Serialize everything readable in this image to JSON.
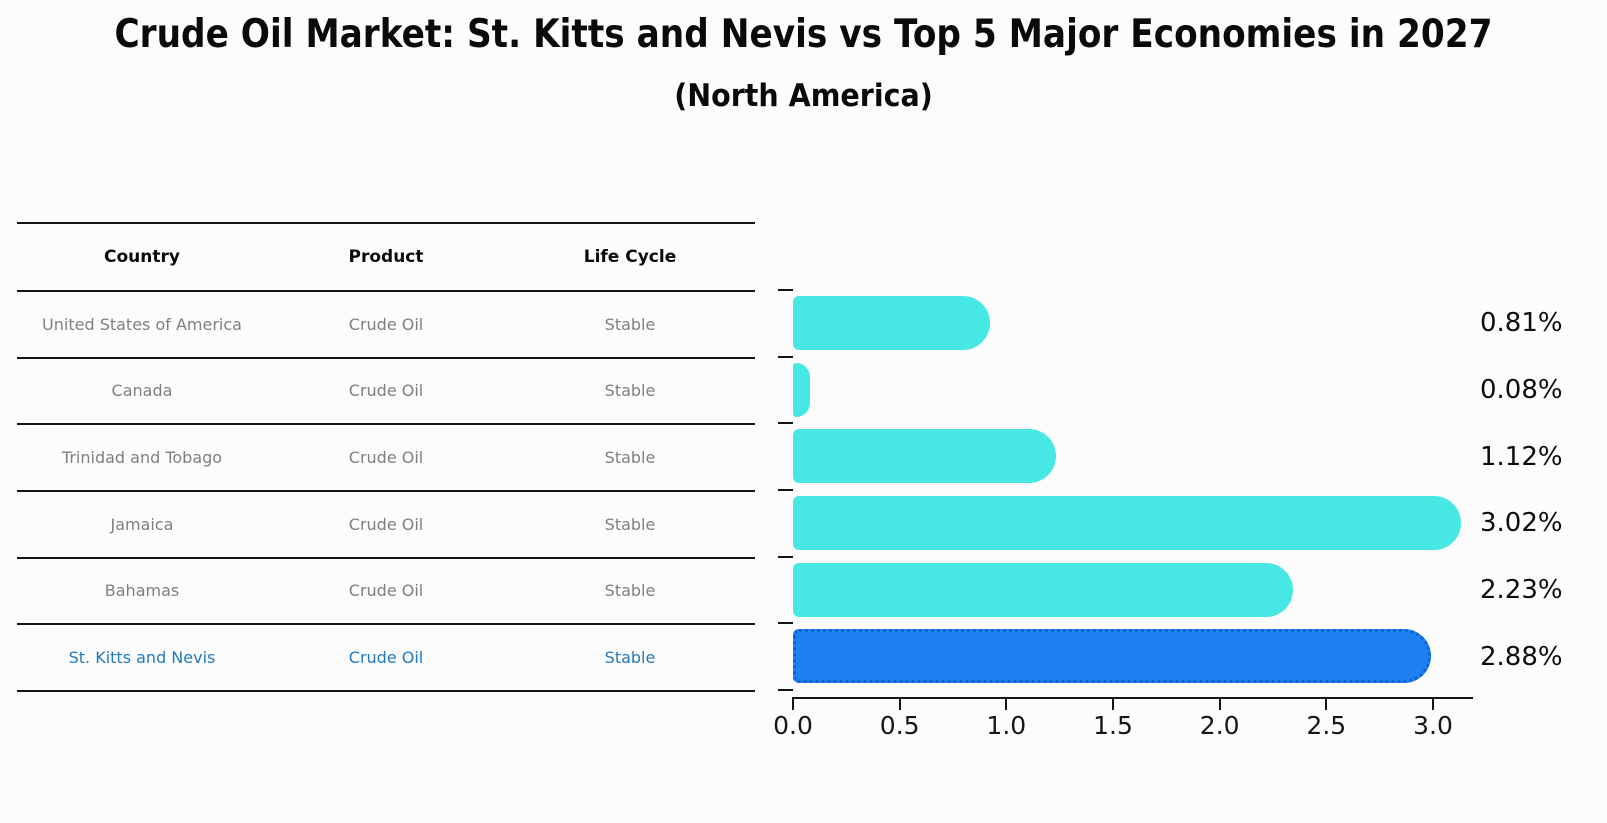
{
  "title": "Crude Oil Market: St. Kitts and Nevis vs Top 5 Major Economies in 2027",
  "subtitle": "(North America)",
  "table": {
    "headers": [
      "Country",
      "Product",
      "Life Cycle"
    ],
    "rows": [
      {
        "country": "United States of America",
        "product": "Crude Oil",
        "life_cycle": "Stable",
        "highlighted": false
      },
      {
        "country": "Canada",
        "product": "Crude Oil",
        "life_cycle": "Stable",
        "highlighted": false
      },
      {
        "country": "Trinidad and Tobago",
        "product": "Crude Oil",
        "life_cycle": "Stable",
        "highlighted": false
      },
      {
        "country": "Jamaica",
        "product": "Crude Oil",
        "life_cycle": "Stable",
        "highlighted": false
      },
      {
        "country": "Bahamas",
        "product": "Crude Oil",
        "life_cycle": "Stable",
        "highlighted": false
      },
      {
        "country": "St. Kitts and Nevis",
        "product": "Crude Oil",
        "life_cycle": "Stable",
        "highlighted": true
      }
    ]
  },
  "chart_data": {
    "type": "bar",
    "orientation": "horizontal",
    "title": "Crude Oil Market: St. Kitts and Nevis vs Top 5 Major Economies in 2027 (North America)",
    "categories": [
      "United States of America",
      "Canada",
      "Trinidad and Tobago",
      "Jamaica",
      "Bahamas",
      "St. Kitts and Nevis"
    ],
    "values": [
      0.81,
      0.08,
      1.12,
      3.02,
      2.23,
      2.88
    ],
    "value_labels": [
      "0.81%",
      "0.08%",
      "1.12%",
      "3.02%",
      "2.23%",
      "2.88%"
    ],
    "xlim": [
      0,
      3.2
    ],
    "xticks": [
      0.0,
      0.5,
      1.0,
      1.5,
      2.0,
      2.5,
      3.0
    ],
    "xtick_labels": [
      "0.0",
      "0.5",
      "1.0",
      "1.5",
      "2.0",
      "2.5",
      "3.0"
    ],
    "grid": false,
    "legend": null,
    "highlight_index": 5
  },
  "colors": {
    "bar_default": "#47e8e4",
    "bar_highlight": "#1e80f2",
    "bar_highlight_border": "#0c63d2",
    "table_text": "#7f7f7f",
    "table_highlight_text": "#2279bd",
    "axis_line": "#141414",
    "background": "#fcfcfc"
  }
}
